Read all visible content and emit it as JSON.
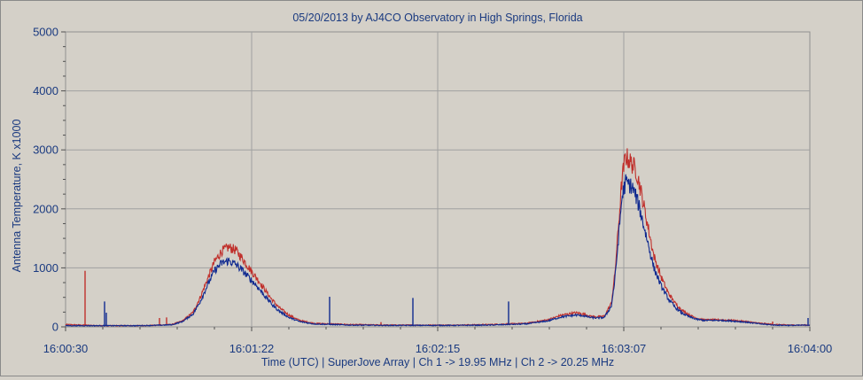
{
  "chart_data": {
    "type": "line",
    "title": "05/20/2013  by  AJ4CO Observatory  in  High Springs, Florida",
    "xlabel": "Time (UTC)  |  SuperJove Array  |  Ch 1 -> 19.95 MHz  |  Ch 2 -> 20.25 MHz",
    "ylabel": "Antenna Temperature, K x1000",
    "x_ticks": [
      "16:00:30",
      "16:01:22",
      "16:02:15",
      "16:03:07",
      "16:04:00"
    ],
    "x_tick_seconds": [
      0,
      52.5,
      105,
      157.5,
      210
    ],
    "y_ticks": [
      "0",
      "1000",
      "2000",
      "3000",
      "4000",
      "5000"
    ],
    "y_tick_values": [
      0,
      1000,
      2000,
      3000,
      4000,
      5000
    ],
    "xlim_seconds": [
      0,
      210
    ],
    "ylim": [
      0,
      5000
    ],
    "grid": true,
    "background_color": "#d4d0c8",
    "grid_color": "#a0a0a0",
    "text_color": "#1a3a80",
    "series": [
      {
        "color": "#c0302c",
        "x": [
          0,
          5,
          10,
          15,
          20,
          25,
          30,
          33,
          36,
          38,
          40,
          42,
          44,
          46,
          48,
          50,
          52,
          54,
          56,
          58,
          60,
          63,
          66,
          70,
          80,
          90,
          100,
          110,
          120,
          130,
          136,
          140,
          144,
          146,
          148,
          150,
          152,
          154,
          155,
          156,
          157,
          158,
          159,
          160,
          161,
          162,
          163,
          164,
          165,
          166,
          168,
          170,
          172,
          174,
          176,
          178,
          180,
          184,
          188,
          192,
          196,
          200,
          205,
          210
        ],
        "y": [
          40,
          30,
          20,
          20,
          20,
          25,
          40,
          100,
          250,
          500,
          800,
          1100,
          1280,
          1350,
          1300,
          1150,
          980,
          820,
          650,
          480,
          340,
          200,
          110,
          60,
          40,
          30,
          30,
          30,
          40,
          60,
          120,
          200,
          240,
          220,
          180,
          170,
          180,
          400,
          900,
          1700,
          2500,
          2900,
          2820,
          2750,
          2650,
          2400,
          2100,
          1800,
          1500,
          1200,
          850,
          580,
          400,
          280,
          200,
          150,
          120,
          120,
          110,
          90,
          60,
          40,
          30,
          30
        ],
        "spikes": [
          {
            "x": 5.5,
            "y": 950
          },
          {
            "x": 26.5,
            "y": 150
          },
          {
            "x": 28.5,
            "y": 160
          },
          {
            "x": 54.5,
            "y": 750
          },
          {
            "x": 89,
            "y": 80
          },
          {
            "x": 199.5,
            "y": 90
          }
        ]
      },
      {
        "color": "#102a90",
        "x": [
          0,
          5,
          10,
          15,
          20,
          25,
          30,
          33,
          36,
          38,
          40,
          42,
          44,
          46,
          48,
          50,
          52,
          54,
          56,
          58,
          60,
          63,
          66,
          70,
          80,
          90,
          100,
          110,
          120,
          130,
          136,
          140,
          144,
          146,
          148,
          150,
          152,
          154,
          155,
          156,
          157,
          158,
          159,
          160,
          161,
          162,
          163,
          164,
          165,
          166,
          168,
          170,
          172,
          174,
          176,
          178,
          180,
          184,
          188,
          192,
          196,
          200,
          205,
          210
        ],
        "y": [
          20,
          20,
          20,
          20,
          20,
          25,
          35,
          90,
          220,
          430,
          700,
          950,
          1080,
          1120,
          1060,
          950,
          820,
          690,
          540,
          400,
          280,
          160,
          90,
          50,
          30,
          25,
          25,
          25,
          30,
          50,
          100,
          170,
          200,
          190,
          160,
          150,
          160,
          350,
          800,
          1500,
          2200,
          2450,
          2420,
          2350,
          2200,
          2000,
          1750,
          1500,
          1250,
          1000,
          700,
          480,
          330,
          230,
          170,
          130,
          110,
          110,
          100,
          80,
          50,
          30,
          25,
          30
        ],
        "spikes": [
          {
            "x": 11,
            "y": 430
          },
          {
            "x": 11.5,
            "y": 240
          },
          {
            "x": 58.5,
            "y": 330
          },
          {
            "x": 74.5,
            "y": 510
          },
          {
            "x": 98,
            "y": 490
          },
          {
            "x": 125,
            "y": 430
          },
          {
            "x": 209.5,
            "y": 150
          }
        ]
      }
    ]
  }
}
